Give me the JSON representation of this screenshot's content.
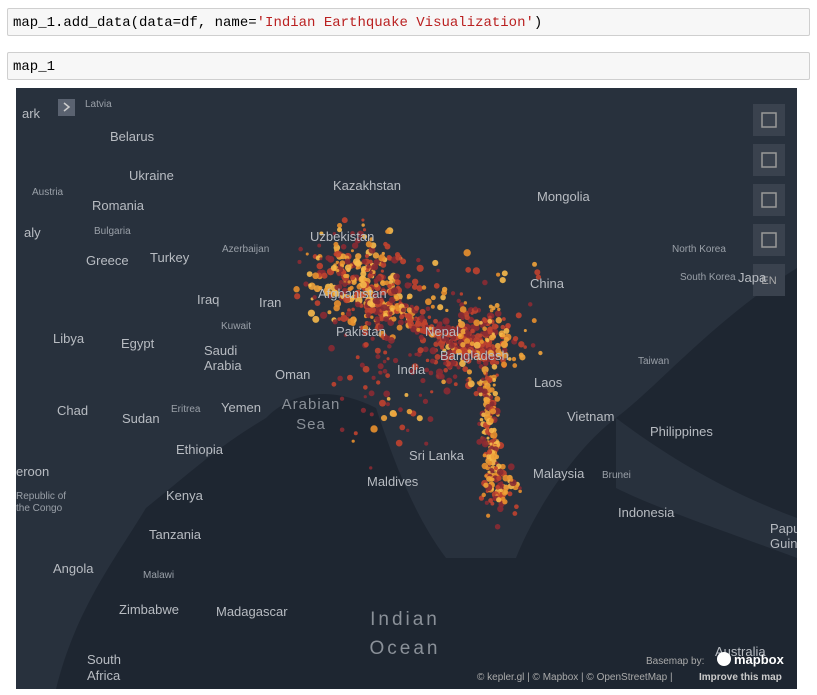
{
  "cells": [
    {
      "code": [
        "map_1.add_data(data=df, name=",
        "'Indian Earthquake Visualization'",
        ")"
      ]
    },
    {
      "code": [
        "map_1"
      ]
    }
  ],
  "map": {
    "labels": [
      "Latvia",
      "ark",
      "Belarus",
      "Ukraine",
      "Austria",
      "Romania",
      "aly",
      "Bulgaria",
      "Greece",
      "Turkey",
      "Azerbaijan",
      "Kazakhstan",
      "Uzbekistan",
      "Mongolia",
      "Afghanistan",
      "Iraq",
      "Iran",
      "Kuwait",
      "Pakistan",
      "Nepal",
      "China",
      "North Korea",
      "South Korea",
      "Japa",
      "Libya",
      "Egypt",
      "Saudi",
      "Arabia",
      "Oman",
      "India",
      "Bangladesh",
      "Laos",
      "Taiwan",
      "Chad",
      "Sudan",
      "Eritrea",
      "Yemen",
      "Arabian",
      "Sea",
      "Vietnam",
      "Philippines",
      "Ethiopia",
      "Sri Lanka",
      "Maldives",
      "Malaysia",
      "Brunei",
      "eroon",
      "Republic of",
      "the Congo",
      "Kenya",
      "Indonesia",
      "Tanzania",
      "Papua Ne",
      "Guinea",
      "Angola",
      "Malawi",
      "Zimbabwe",
      "Madagascar",
      "Indian",
      "Ocean",
      "South",
      "Africa",
      "Australia"
    ],
    "language": "EN",
    "basemap": "Basemap by:",
    "logo": "mapbox",
    "attribution": "© kepler.gl | © Mapbox | © OpenStreetMap |",
    "improve": "Improve this map"
  }
}
